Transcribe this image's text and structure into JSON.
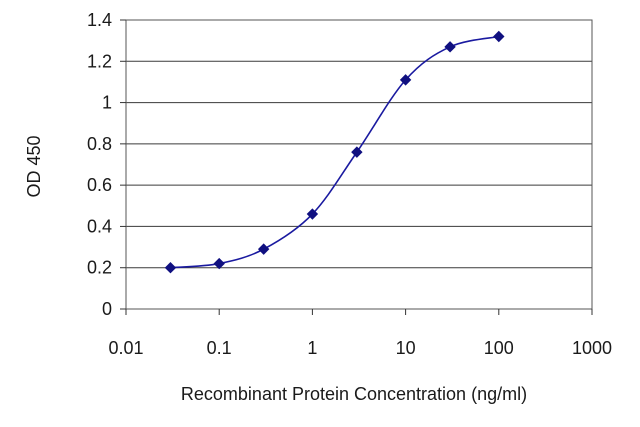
{
  "chart_data": {
    "type": "line",
    "title": "",
    "xlabel": "Recombinant Protein Concentration (ng/ml)",
    "ylabel": "OD 450",
    "x_scale": "log",
    "xlim": [
      0.01,
      1000
    ],
    "ylim": [
      0,
      1.4
    ],
    "x_ticks": [
      "0.01",
      "0.1",
      "1",
      "10",
      "100",
      "1000"
    ],
    "y_ticks": [
      "0",
      "0.2",
      "0.4",
      "0.6",
      "0.8",
      "1",
      "1.2",
      "1.4"
    ],
    "grid": "horizontal",
    "series": [
      {
        "x": [
          0.03,
          0.1,
          0.3,
          1,
          3,
          10,
          30,
          100
        ],
        "y": [
          0.2,
          0.22,
          0.29,
          0.46,
          0.76,
          1.11,
          1.27,
          1.32
        ]
      }
    ],
    "colors": {
      "series": "#1a1aa0",
      "marker": "#101080"
    }
  }
}
